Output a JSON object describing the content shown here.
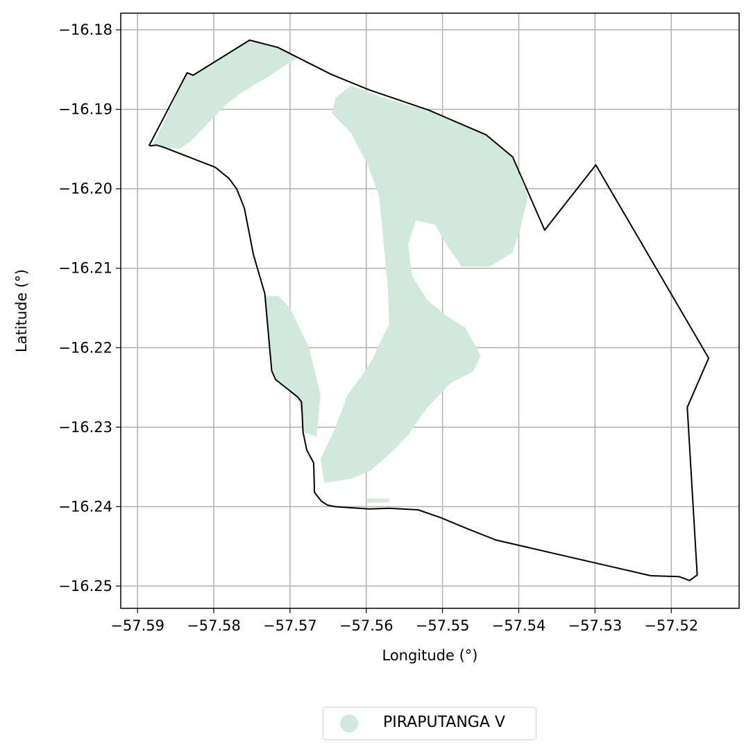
{
  "chart_data": {
    "type": "map",
    "xlabel": "Longitude (°)",
    "ylabel": "Latitude (°)",
    "xlim": [
      -57.5922,
      -57.5111
    ],
    "ylim": [
      -16.2528,
      -16.1779
    ],
    "x_ticks": [
      -57.59,
      -57.58,
      -57.57,
      -57.56,
      -57.55,
      -57.54,
      -57.53,
      -57.52
    ],
    "x_tick_labels": [
      "−57.59",
      "−57.58",
      "−57.57",
      "−57.56",
      "−57.55",
      "−57.54",
      "−57.53",
      "−57.52"
    ],
    "y_ticks": [
      -16.18,
      -16.19,
      -16.2,
      -16.21,
      -16.22,
      -16.23,
      -16.24,
      -16.25
    ],
    "y_tick_labels": [
      "−16.18",
      "−16.19",
      "−16.20",
      "−16.21",
      "−16.22",
      "−16.23",
      "−16.24",
      "−16.25"
    ],
    "grid": true,
    "legend_position": "bottom-center",
    "colors": {
      "fill": "#cfeadc",
      "boundary": "#000000",
      "grid": "#b0b0b0"
    },
    "series": [
      {
        "name": "PIRAPUTANGA V"
      }
    ],
    "boundary": [
      [
        -57.5884,
        -16.1946
      ],
      [
        -57.5875,
        -16.1945
      ],
      [
        -57.5865,
        -16.1948
      ],
      [
        -57.5798,
        -16.1973
      ],
      [
        -57.578,
        -16.1987
      ],
      [
        -57.577,
        -16.2
      ],
      [
        -57.5765,
        -16.2012
      ],
      [
        -57.576,
        -16.2024
      ],
      [
        -57.5748,
        -16.2083
      ],
      [
        -57.5733,
        -16.2132
      ],
      [
        -57.5724,
        -16.2229
      ],
      [
        -57.5719,
        -16.224
      ],
      [
        -57.569,
        -16.2262
      ],
      [
        -57.5685,
        -16.2268
      ],
      [
        -57.5684,
        -16.2286
      ],
      [
        -57.5683,
        -16.2306
      ],
      [
        -57.5678,
        -16.2329
      ],
      [
        -57.5669,
        -16.2345
      ],
      [
        -57.5668,
        -16.2382
      ],
      [
        -57.5659,
        -16.2393
      ],
      [
        -57.5651,
        -16.2398
      ],
      [
        -57.5641,
        -16.24
      ],
      [
        -57.5596,
        -16.2403
      ],
      [
        -57.557,
        -16.2402
      ],
      [
        -57.5532,
        -16.2404
      ],
      [
        -57.5502,
        -16.2414
      ],
      [
        -57.5467,
        -16.2428
      ],
      [
        -57.543,
        -16.2442
      ],
      [
        -57.5227,
        -16.2487
      ],
      [
        -57.519,
        -16.2488
      ],
      [
        -57.5176,
        -16.2493
      ],
      [
        -57.5166,
        -16.2486
      ],
      [
        -57.5179,
        -16.2275
      ],
      [
        -57.5151,
        -16.2213
      ],
      [
        -57.5299,
        -16.197
      ],
      [
        -57.5366,
        -16.2052
      ],
      [
        -57.5408,
        -16.196
      ],
      [
        -57.5443,
        -16.1932
      ],
      [
        -57.5518,
        -16.1901
      ],
      [
        -57.5595,
        -16.1876
      ],
      [
        -57.5646,
        -16.1856
      ],
      [
        -57.5716,
        -16.1822
      ],
      [
        -57.5753,
        -16.1813
      ],
      [
        -57.5827,
        -16.1857
      ],
      [
        -57.5835,
        -16.1854
      ],
      [
        -57.5885,
        -16.1946
      ]
    ],
    "regions": [
      [
        [
          -57.588,
          -16.1945
        ],
        [
          -57.5835,
          -16.1855
        ],
        [
          -57.5827,
          -16.1857
        ],
        [
          -57.5753,
          -16.1813
        ],
        [
          -57.5716,
          -16.1822
        ],
        [
          -57.569,
          -16.1835
        ],
        [
          -57.571,
          -16.1847
        ],
        [
          -57.573,
          -16.186
        ],
        [
          -57.5745,
          -16.1868
        ],
        [
          -57.5765,
          -16.188
        ],
        [
          -57.5785,
          -16.1895
        ],
        [
          -57.58,
          -16.191
        ],
        [
          -57.5815,
          -16.1925
        ],
        [
          -57.583,
          -16.194
        ],
        [
          -57.5845,
          -16.195
        ],
        [
          -57.5865,
          -16.1948
        ]
      ],
      [
        [
          -57.562,
          -16.187
        ],
        [
          -57.557,
          -16.1888
        ],
        [
          -57.5515,
          -16.1902
        ],
        [
          -57.5445,
          -16.1932
        ],
        [
          -57.5408,
          -16.1962
        ],
        [
          -57.5388,
          -16.201
        ],
        [
          -57.5398,
          -16.205
        ],
        [
          -57.5408,
          -16.208
        ],
        [
          -57.5438,
          -16.2098
        ],
        [
          -57.5475,
          -16.2098
        ],
        [
          -57.5495,
          -16.207
        ],
        [
          -57.551,
          -16.2045
        ],
        [
          -57.5535,
          -16.204
        ],
        [
          -57.5545,
          -16.207
        ],
        [
          -57.554,
          -16.211
        ],
        [
          -57.552,
          -16.214
        ],
        [
          -57.5495,
          -16.216
        ],
        [
          -57.547,
          -16.2175
        ],
        [
          -57.545,
          -16.221
        ],
        [
          -57.546,
          -16.223
        ],
        [
          -57.549,
          -16.2245
        ],
        [
          -57.552,
          -16.2275
        ],
        [
          -57.5545,
          -16.231
        ],
        [
          -57.5565,
          -16.233
        ],
        [
          -57.5595,
          -16.2355
        ],
        [
          -57.562,
          -16.2365
        ],
        [
          -57.5655,
          -16.237
        ],
        [
          -57.566,
          -16.234
        ],
        [
          -57.564,
          -16.23
        ],
        [
          -57.5625,
          -16.226
        ],
        [
          -57.5595,
          -16.222
        ],
        [
          -57.557,
          -16.217
        ],
        [
          -57.5572,
          -16.212
        ],
        [
          -57.5577,
          -16.207
        ],
        [
          -57.5583,
          -16.201
        ],
        [
          -57.5598,
          -16.197
        ],
        [
          -57.562,
          -16.193
        ],
        [
          -57.5645,
          -16.1905
        ],
        [
          -57.564,
          -16.1885
        ]
      ],
      [
        [
          -57.5734,
          -16.2135
        ],
        [
          -57.5724,
          -16.2229
        ],
        [
          -57.5719,
          -16.224
        ],
        [
          -57.569,
          -16.2262
        ],
        [
          -57.5684,
          -16.2286
        ],
        [
          -57.5683,
          -16.2306
        ],
        [
          -57.5665,
          -16.2312
        ],
        [
          -57.566,
          -16.226
        ],
        [
          -57.5675,
          -16.22
        ],
        [
          -57.57,
          -16.215
        ],
        [
          -57.5715,
          -16.2135
        ]
      ],
      [
        [
          -57.56,
          -16.239
        ],
        [
          -57.557,
          -16.239
        ],
        [
          -57.557,
          -16.2395
        ],
        [
          -57.56,
          -16.2395
        ]
      ]
    ]
  },
  "legend": {
    "label": "PIRAPUTANGA V"
  }
}
